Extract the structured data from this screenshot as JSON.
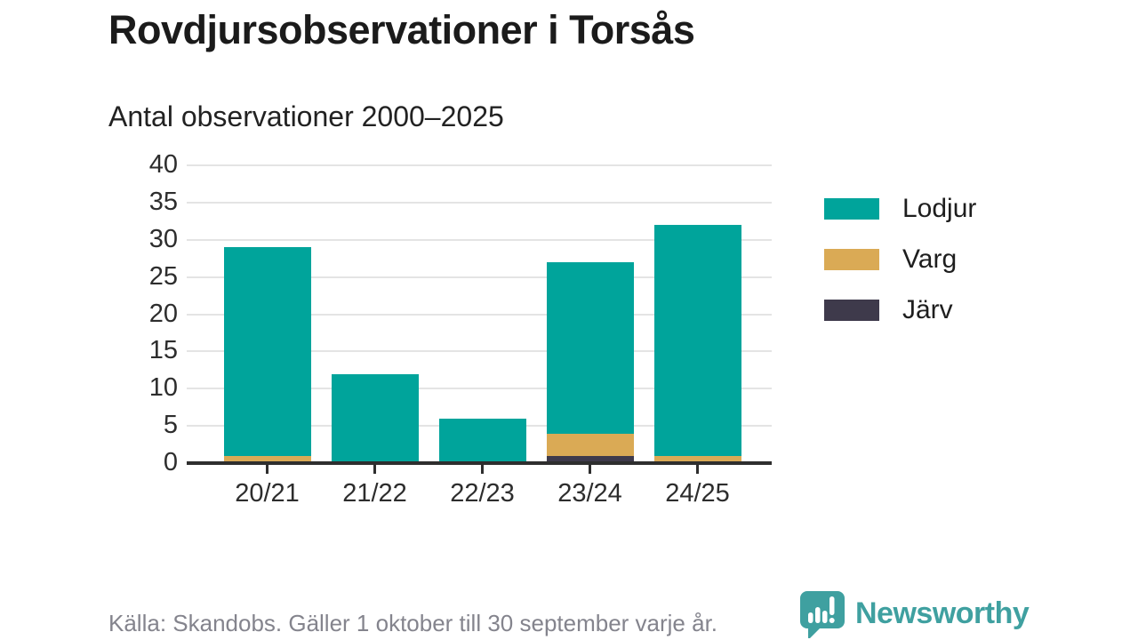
{
  "chart_data": {
    "type": "bar",
    "stacked": true,
    "title": "Rovdjursobservationer i Torsås",
    "subtitle": "Antal observationer 2000–2025",
    "categories": [
      "20/21",
      "21/22",
      "22/23",
      "23/24",
      "24/25"
    ],
    "series": [
      {
        "name": "Lodjur",
        "color": "#00a49b",
        "values": [
          28,
          12,
          6,
          23,
          31
        ]
      },
      {
        "name": "Varg",
        "color": "#daaa55",
        "values": [
          1,
          0,
          0,
          3,
          1
        ]
      },
      {
        "name": "Järv",
        "color": "#3e3a4b",
        "values": [
          0,
          0,
          0,
          1,
          0
        ]
      }
    ],
    "stack_order_bottom_to_top": [
      "Järv",
      "Varg",
      "Lodjur"
    ],
    "totals": [
      29,
      12,
      6,
      27,
      32
    ],
    "ylim": [
      0,
      40
    ],
    "ytick_step": 5,
    "grid": true,
    "legend_position": "right"
  },
  "legend": {
    "items": [
      {
        "label": "Lodjur"
      },
      {
        "label": "Varg"
      },
      {
        "label": "Järv"
      }
    ]
  },
  "footer": {
    "source": "Källa: Skandobs. Gäller 1 oktober till 30 september varje år.",
    "brand_name": "Newsworthy"
  },
  "colors": {
    "lodjur": "#00a49b",
    "varg": "#daaa55",
    "jarv": "#3e3a4b",
    "axis": "#2e2e2e",
    "grid": "#e4e4e4",
    "title_text": "#1b1b1b",
    "footer_text": "#84848d",
    "brand_teal": "#3fa0a0"
  }
}
